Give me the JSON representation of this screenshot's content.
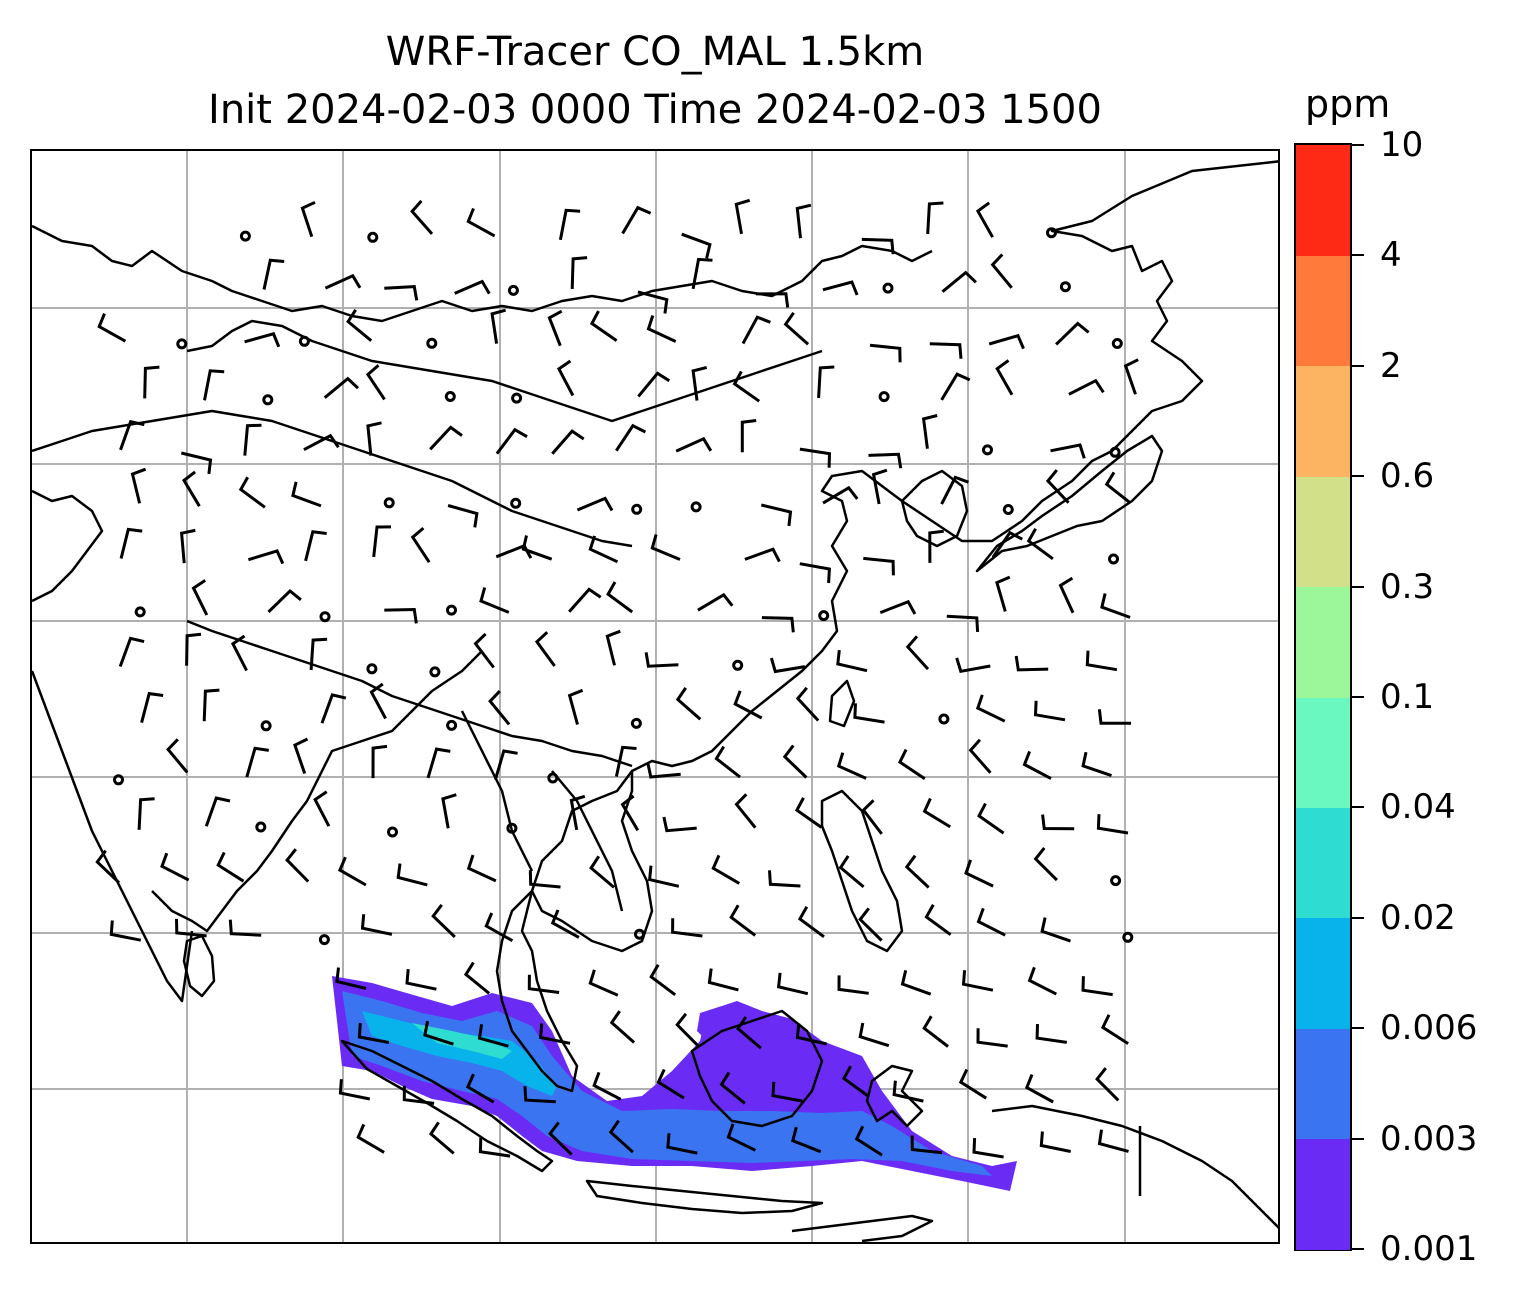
{
  "title": {
    "line1": "WRF-Tracer CO_MAL 1.5km",
    "line2": "Init 2024-02-03 0000 Time 2024-02-03 1500"
  },
  "colorbar": {
    "unit": "ppm",
    "ticks": [
      "0.001",
      "0.003",
      "0.006",
      "0.02",
      "0.04",
      "0.1",
      "0.3",
      "0.6",
      "2",
      "4",
      "10"
    ],
    "colors": [
      "#6a2cf5",
      "#3b74f0",
      "#08b2ea",
      "#2fdcd2",
      "#6af7c0",
      "#9cf79a",
      "#d3e08a",
      "#fdb462",
      "#ff7a3b",
      "#ff2a15"
    ]
  },
  "map": {
    "gridlines": "on",
    "coast_color": "#000000",
    "grid_color": "#b0b0b0",
    "wind_barbs": "on",
    "calm_circles": "on"
  }
}
